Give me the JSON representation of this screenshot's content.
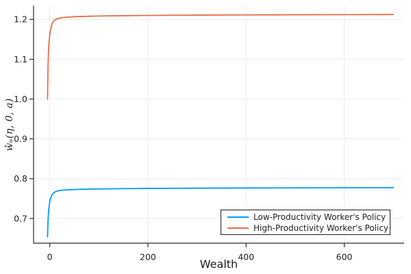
{
  "figure": {
    "background": "#ffffff"
  },
  "chart_data": {
    "type": "line",
    "title": "",
    "xlabel": "Wealth",
    "ylabel": "ŵᵤ(η, 0, a)",
    "xlim": [
      -33,
      722
    ],
    "ylim": [
      0.638,
      1.235
    ],
    "xticks": [
      0,
      200,
      400,
      600
    ],
    "yticks": [
      0.7,
      0.8,
      0.9,
      1.0,
      1.1,
      1.2
    ],
    "grid": true,
    "axis_color": "#2b2b2b",
    "grid_color": "#ebebeb",
    "tick_label_color": "#1c1c1c",
    "legend_position": "bottom-right",
    "series": [
      {
        "name": "Low-Productivity Worker's Policy",
        "color": "#009AFA",
        "points": [
          [
            -4.5,
            0.654
          ],
          [
            -4.2,
            0.668
          ],
          [
            -3.9,
            0.681
          ],
          [
            -3.5,
            0.694
          ],
          [
            -3,
            0.706
          ],
          [
            -2.5,
            0.715
          ],
          [
            -2,
            0.722
          ],
          [
            -1.5,
            0.728
          ],
          [
            -1,
            0.733
          ],
          [
            -0.5,
            0.7375
          ],
          [
            0,
            0.7415
          ],
          [
            1,
            0.7475
          ],
          [
            2,
            0.752
          ],
          [
            3,
            0.7555
          ],
          [
            4,
            0.758
          ],
          [
            5,
            0.76
          ],
          [
            6,
            0.7618
          ],
          [
            8,
            0.7645
          ],
          [
            10,
            0.7662
          ],
          [
            12,
            0.7675
          ],
          [
            15,
            0.7688
          ],
          [
            20,
            0.7702
          ],
          [
            25,
            0.771
          ],
          [
            30,
            0.7715
          ],
          [
            40,
            0.7722
          ],
          [
            50,
            0.7727
          ],
          [
            75,
            0.7736
          ],
          [
            100,
            0.7742
          ],
          [
            150,
            0.775
          ],
          [
            200,
            0.7755
          ],
          [
            250,
            0.7759
          ],
          [
            300,
            0.7762
          ],
          [
            400,
            0.7766
          ],
          [
            500,
            0.7769
          ],
          [
            600,
            0.7771
          ],
          [
            700,
            0.7773
          ]
        ]
      },
      {
        "name": "High-Productivity Worker's Policy",
        "color": "#E36F47",
        "points": [
          [
            -4.5,
            1.0
          ],
          [
            -4.2,
            1.03
          ],
          [
            -3.9,
            1.055
          ],
          [
            -3.5,
            1.082
          ],
          [
            -3,
            1.104
          ],
          [
            -2.5,
            1.12
          ],
          [
            -2,
            1.132
          ],
          [
            -1.5,
            1.141
          ],
          [
            -1,
            1.149
          ],
          [
            -0.5,
            1.155
          ],
          [
            0,
            1.161
          ],
          [
            1,
            1.17
          ],
          [
            2,
            1.176
          ],
          [
            3,
            1.181
          ],
          [
            4,
            1.1855
          ],
          [
            5,
            1.189
          ],
          [
            6,
            1.192
          ],
          [
            8,
            1.1955
          ],
          [
            10,
            1.198
          ],
          [
            12,
            1.1998
          ],
          [
            15,
            1.2015
          ],
          [
            20,
            1.2032
          ],
          [
            25,
            1.2042
          ],
          [
            30,
            1.205
          ],
          [
            40,
            1.206
          ],
          [
            50,
            1.2067
          ],
          [
            75,
            1.2078
          ],
          [
            100,
            1.2085
          ],
          [
            150,
            1.2093
          ],
          [
            200,
            1.21
          ],
          [
            250,
            1.2104
          ],
          [
            300,
            1.2108
          ],
          [
            400,
            1.2113
          ],
          [
            500,
            1.2117
          ],
          [
            600,
            1.212
          ],
          [
            700,
            1.2123
          ]
        ]
      }
    ]
  }
}
